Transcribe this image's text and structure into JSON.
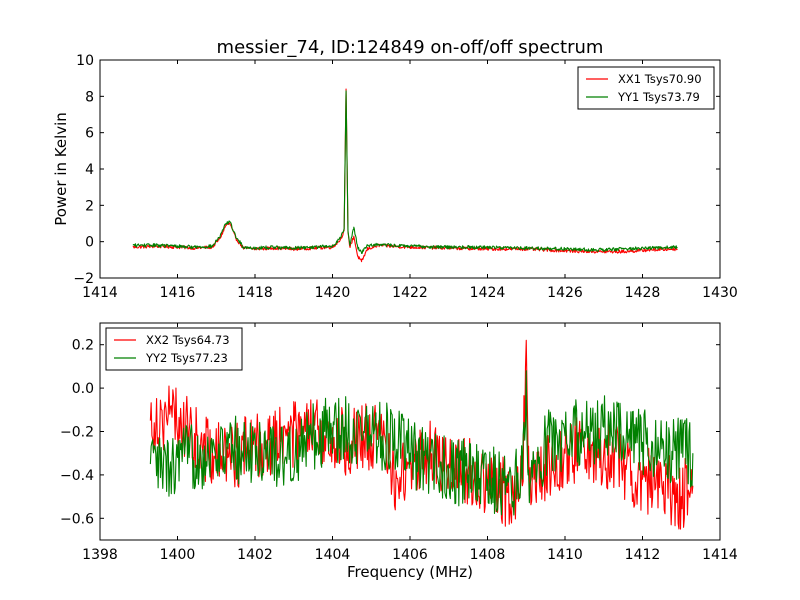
{
  "chart_data": [
    {
      "type": "line",
      "title": "messier_74, ID:124849 on-off/off spectrum",
      "xlabel": "",
      "ylabel": "Power in Kelvin",
      "xlim": [
        1414,
        1430
      ],
      "ylim": [
        -2,
        10
      ],
      "xticks": [
        1414,
        1416,
        1418,
        1420,
        1422,
        1424,
        1426,
        1428,
        1430
      ],
      "yticks": [
        -2,
        0,
        2,
        4,
        6,
        8,
        10
      ],
      "grid": false,
      "legend": "top-right",
      "series": [
        {
          "name": "XX1 Tsys70.90",
          "color": "#ff0000",
          "x": [
            1414.85,
            1415.5,
            1416.0,
            1416.5,
            1416.9,
            1417.1,
            1417.25,
            1417.35,
            1417.5,
            1417.7,
            1418.0,
            1418.5,
            1419.0,
            1419.5,
            1420.0,
            1420.2,
            1420.3,
            1420.35,
            1420.4,
            1420.45,
            1420.55,
            1420.65,
            1420.75,
            1420.9,
            1421.2,
            1421.5,
            1422.0,
            1423.0,
            1424.0,
            1425.0,
            1426.0,
            1426.8,
            1427.5,
            1428.2,
            1428.9
          ],
          "y": [
            -0.3,
            -0.25,
            -0.3,
            -0.35,
            -0.3,
            0.2,
            0.9,
            1.0,
            0.2,
            -0.35,
            -0.4,
            -0.35,
            -0.4,
            -0.35,
            -0.3,
            0.1,
            0.6,
            8.4,
            0.5,
            -0.3,
            0.3,
            -0.8,
            -1.1,
            -0.4,
            -0.2,
            -0.25,
            -0.3,
            -0.35,
            -0.4,
            -0.4,
            -0.5,
            -0.55,
            -0.55,
            -0.45,
            -0.4
          ]
        },
        {
          "name": "YY1 Tsys73.79",
          "color": "#008000",
          "x": [
            1414.85,
            1415.5,
            1416.0,
            1416.5,
            1416.9,
            1417.1,
            1417.25,
            1417.35,
            1417.5,
            1417.7,
            1418.0,
            1418.5,
            1419.0,
            1419.5,
            1420.0,
            1420.2,
            1420.3,
            1420.35,
            1420.4,
            1420.45,
            1420.55,
            1420.65,
            1420.75,
            1420.9,
            1421.2,
            1421.5,
            1422.0,
            1423.0,
            1424.0,
            1425.0,
            1426.0,
            1426.8,
            1427.5,
            1428.2,
            1428.9
          ],
          "y": [
            -0.2,
            -0.2,
            -0.25,
            -0.3,
            -0.25,
            0.3,
            1.0,
            1.1,
            0.3,
            -0.3,
            -0.35,
            -0.3,
            -0.35,
            -0.3,
            -0.25,
            0.2,
            0.7,
            8.3,
            0.6,
            -0.2,
            0.8,
            -0.3,
            -0.6,
            -0.2,
            -0.15,
            -0.2,
            -0.25,
            -0.3,
            -0.3,
            -0.35,
            -0.4,
            -0.45,
            -0.4,
            -0.35,
            -0.3
          ]
        }
      ]
    },
    {
      "type": "line",
      "title": "",
      "xlabel": "Frequency (MHz)",
      "ylabel": "",
      "xlim": [
        1398,
        1414
      ],
      "ylim": [
        -0.7,
        0.3
      ],
      "xticks": [
        1398,
        1400,
        1402,
        1404,
        1406,
        1408,
        1410,
        1412,
        1414
      ],
      "yticks": [
        -0.6,
        -0.4,
        -0.2,
        0.0,
        0.2
      ],
      "ytick_labels": [
        "−0.6",
        "−0.4",
        "−0.2",
        "0.0",
        "0.2"
      ],
      "grid": false,
      "legend": "top-left",
      "series": [
        {
          "name": "XX2 Tsys64.73",
          "color": "#ff0000",
          "x": [
            1399.3,
            1399.8,
            1400.3,
            1400.8,
            1401.3,
            1401.8,
            1402.3,
            1402.8,
            1403.3,
            1403.8,
            1404.3,
            1404.8,
            1405.3,
            1405.7,
            1406.0,
            1406.5,
            1407.0,
            1407.5,
            1408.0,
            1408.5,
            1408.9,
            1409.0,
            1409.05,
            1409.2,
            1409.6,
            1410.0,
            1410.5,
            1411.0,
            1411.5,
            1412.0,
            1412.5,
            1413.0,
            1413.3
          ],
          "y": [
            -0.15,
            -0.12,
            -0.2,
            -0.3,
            -0.32,
            -0.28,
            -0.25,
            -0.22,
            -0.2,
            -0.22,
            -0.25,
            -0.22,
            -0.25,
            -0.45,
            -0.35,
            -0.3,
            -0.35,
            -0.38,
            -0.45,
            -0.48,
            -0.45,
            0.22,
            -0.4,
            -0.42,
            -0.35,
            -0.3,
            -0.28,
            -0.3,
            -0.35,
            -0.42,
            -0.45,
            -0.5,
            -0.45
          ]
        },
        {
          "name": "YY2 Tsys77.23",
          "color": "#008000",
          "x": [
            1399.3,
            1399.8,
            1400.3,
            1400.8,
            1401.3,
            1401.8,
            1402.3,
            1402.8,
            1403.3,
            1403.8,
            1404.3,
            1404.8,
            1405.3,
            1405.7,
            1406.0,
            1406.5,
            1407.0,
            1407.5,
            1408.0,
            1408.5,
            1408.9,
            1409.0,
            1409.05,
            1409.2,
            1409.6,
            1410.0,
            1410.5,
            1411.0,
            1411.5,
            1412.0,
            1412.5,
            1413.0,
            1413.3
          ],
          "y": [
            -0.35,
            -0.38,
            -0.32,
            -0.3,
            -0.28,
            -0.3,
            -0.28,
            -0.32,
            -0.25,
            -0.2,
            -0.18,
            -0.2,
            -0.22,
            -0.25,
            -0.3,
            -0.35,
            -0.38,
            -0.4,
            -0.42,
            -0.45,
            -0.42,
            0.08,
            -0.4,
            -0.35,
            -0.25,
            -0.22,
            -0.2,
            -0.18,
            -0.22,
            -0.25,
            -0.28,
            -0.3,
            -0.3
          ]
        }
      ]
    }
  ]
}
